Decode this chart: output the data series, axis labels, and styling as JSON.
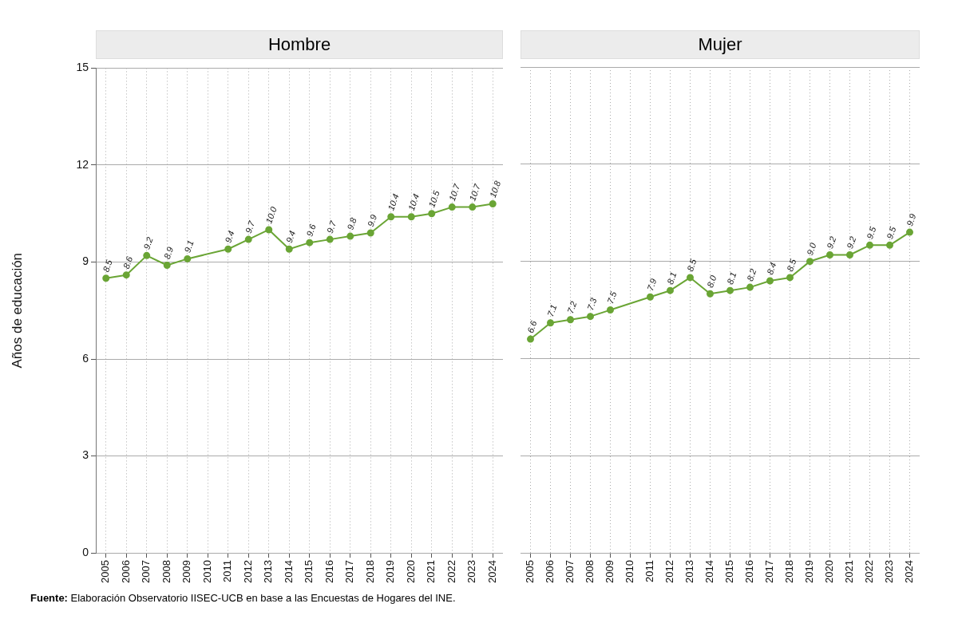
{
  "chart_data": [
    {
      "type": "line",
      "title": "Hombre",
      "ylabel": "Años de educación",
      "categories": [
        "2005",
        "2006",
        "2007",
        "2008",
        "2009",
        "2010",
        "2011",
        "2012",
        "2013",
        "2014",
        "2015",
        "2016",
        "2017",
        "2018",
        "2019",
        "2020",
        "2021",
        "2022",
        "2023",
        "2024"
      ],
      "series": [
        {
          "color": "#6aa535",
          "values": [
            8.5,
            8.6,
            9.2,
            8.9,
            9.1,
            null,
            9.4,
            9.7,
            10.0,
            9.4,
            9.6,
            9.7,
            9.8,
            9.9,
            10.4,
            10.4,
            10.5,
            10.7,
            10.7,
            10.8
          ],
          "value_labels": [
            "8.5",
            "8.6",
            "9.2",
            "8.9",
            "9.1",
            null,
            "9.4",
            "9.7",
            "10.0",
            "9.4",
            "9.6",
            "9.7",
            "9.8",
            "9.9",
            "10.4",
            "10.4",
            "10.5",
            "10.7",
            "10.7",
            "10.8"
          ]
        }
      ],
      "ylim": [
        0,
        15
      ],
      "yticks": [
        0,
        3,
        6,
        9,
        12,
        15
      ],
      "grid": true,
      "marker": "circle",
      "line_style": "solid",
      "legend": false,
      "annotations": [
        "Fuente: Elaboración Observatorio IISEC-UCB en base a las Encuestas de Hogares del INE."
      ]
    },
    {
      "type": "line",
      "title": "Mujer",
      "categories": [
        "2005",
        "2006",
        "2007",
        "2008",
        "2009",
        "2010",
        "2011",
        "2012",
        "2013",
        "2014",
        "2015",
        "2016",
        "2017",
        "2018",
        "2019",
        "2020",
        "2021",
        "2022",
        "2023",
        "2024"
      ],
      "series": [
        {
          "color": "#6aa535",
          "values": [
            6.6,
            7.1,
            7.2,
            7.3,
            7.5,
            null,
            7.9,
            8.1,
            8.5,
            8.0,
            8.1,
            8.2,
            8.4,
            8.5,
            9.0,
            9.2,
            9.2,
            9.5,
            9.5,
            9.9
          ],
          "value_labels": [
            "6.6",
            "7.1",
            "7.2",
            "7.3",
            "7.5",
            null,
            "7.9",
            "8.1",
            "8.5",
            "8.0",
            "8.1",
            "8.2",
            "8.4",
            "8.5",
            "9.0",
            "9.2",
            "9.2",
            "9.5",
            "9.5",
            "9.9"
          ]
        }
      ],
      "ylim": [
        0,
        15
      ],
      "yticks": [
        0,
        3,
        6,
        9,
        12,
        15
      ],
      "grid": true,
      "marker": "circle",
      "line_style": "solid",
      "legend": false,
      "tick_labels": "x"
    }
  ]
}
